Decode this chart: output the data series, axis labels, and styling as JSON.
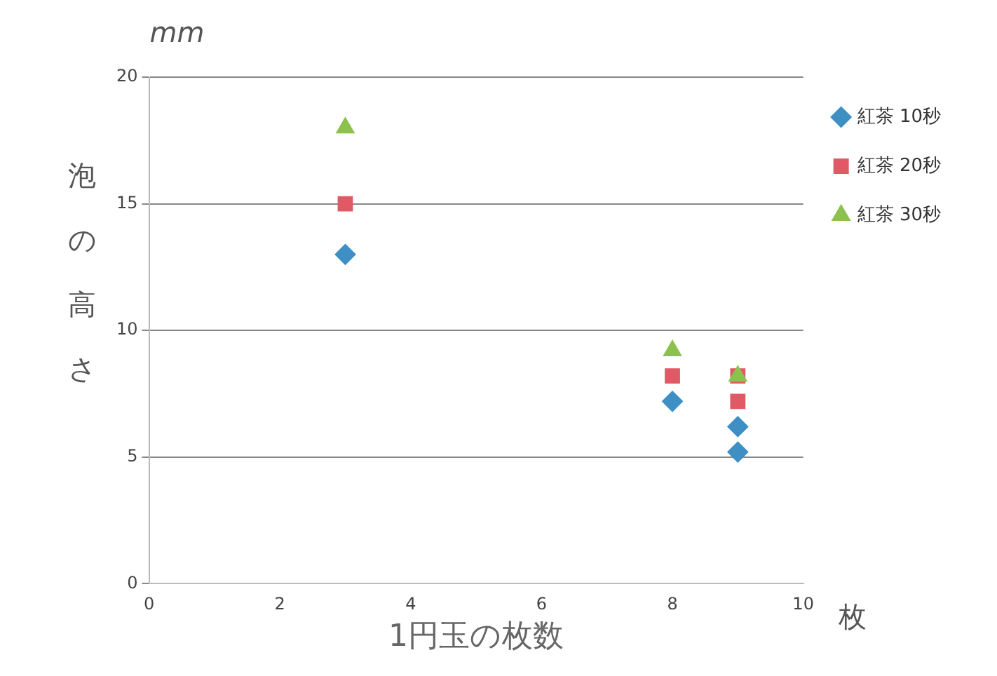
{
  "chart_data": {
    "type": "scatter",
    "xlabel": "1円玉の枚数",
    "ylabel": "泡の高さ",
    "annotations": [
      "mm",
      "枚"
    ],
    "xlim": [
      0,
      10
    ],
    "xticks": [
      0,
      2,
      4,
      6,
      8,
      10
    ],
    "ylim": [
      0,
      20
    ],
    "yticks": [
      0,
      5,
      10,
      15,
      20
    ],
    "grid": "y",
    "legend": "right",
    "series": [
      {
        "name": "紅茶 10秒",
        "color": "#3e8fc4",
        "marker": "diamond",
        "x": [
          3,
          8,
          9,
          9
        ],
        "values": [
          13,
          7.2,
          6.2,
          5.2
        ]
      },
      {
        "name": "紅茶 20秒",
        "color": "#e05a66",
        "marker": "square",
        "x": [
          3,
          8,
          9,
          9
        ],
        "values": [
          15,
          8.2,
          8.2,
          7.2
        ]
      },
      {
        "name": "紅茶 30秒",
        "color": "#8cc14e",
        "marker": "triangle",
        "x": [
          3,
          8,
          9
        ],
        "values": [
          18,
          9.2,
          8.2
        ]
      }
    ]
  }
}
